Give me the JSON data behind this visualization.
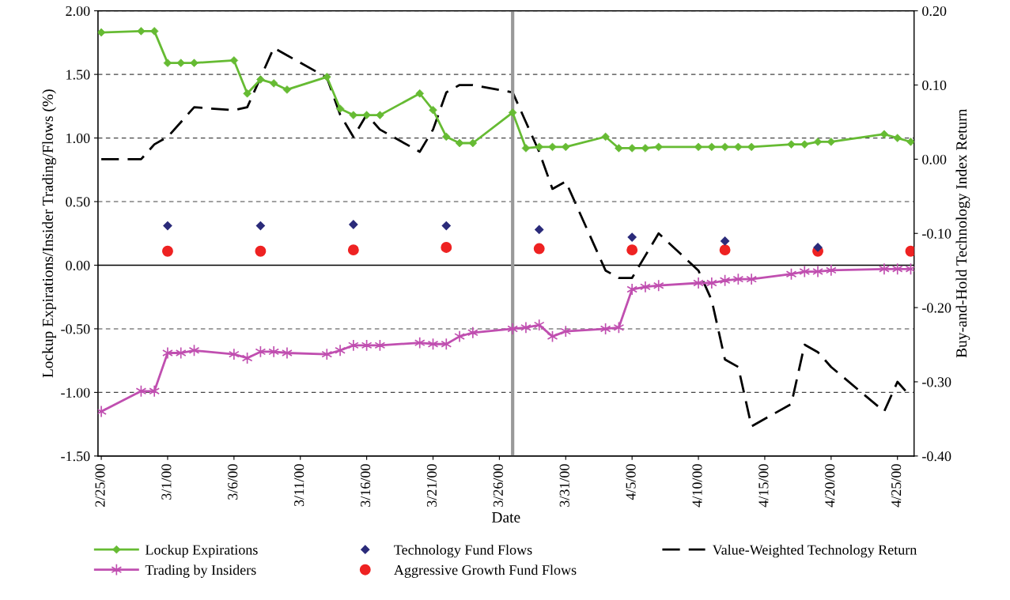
{
  "chart_data": {
    "type": "line",
    "xlabel": "Date",
    "ylabel": "Lockup Expirations/Insider Trading/Flows (%)",
    "y2label": "Buy-and-Hold Technology Index Return",
    "xlim": [
      "2000-02-24T18:00",
      "2000-04-26T06:00"
    ],
    "xticks": [
      {
        "value": "2000-02-25",
        "label": "2/25/00"
      },
      {
        "value": "2000-03-01",
        "label": "3/1/00"
      },
      {
        "value": "2000-03-06",
        "label": "3/6/00"
      },
      {
        "value": "2000-03-11",
        "label": "3/11/00"
      },
      {
        "value": "2000-03-16",
        "label": "3/16/00"
      },
      {
        "value": "2000-03-21",
        "label": "3/21/00"
      },
      {
        "value": "2000-03-26",
        "label": "3/26/00"
      },
      {
        "value": "2000-03-31",
        "label": "3/31/00"
      },
      {
        "value": "2000-04-05",
        "label": "4/5/00"
      },
      {
        "value": "2000-04-10",
        "label": "4/10/00"
      },
      {
        "value": "2000-04-15",
        "label": "4/15/00"
      },
      {
        "value": "2000-04-20",
        "label": "4/20/00"
      },
      {
        "value": "2000-04-25",
        "label": "4/25/00"
      }
    ],
    "ylim": [
      -1.5,
      2.0
    ],
    "yticks": [
      {
        "value": -1.5,
        "label": "-1.50"
      },
      {
        "value": -1.0,
        "label": "-1.00"
      },
      {
        "value": -0.5,
        "label": "-0.50"
      },
      {
        "value": 0,
        "label": "0.00"
      },
      {
        "value": 0.5,
        "label": "0.50"
      },
      {
        "value": 1.0,
        "label": "1.00"
      },
      {
        "value": 1.5,
        "label": "1.50"
      },
      {
        "value": 2.0,
        "label": "2.00"
      }
    ],
    "y2lim": [
      -0.4,
      0.2
    ],
    "y2ticks": [
      {
        "value": -0.4,
        "label": "-0.40"
      },
      {
        "value": -0.3,
        "label": "-0.30"
      },
      {
        "value": -0.2,
        "label": "-0.20"
      },
      {
        "value": -0.1,
        "label": "-0.10"
      },
      {
        "value": 0,
        "label": "0.00"
      },
      {
        "value": 0.1,
        "label": "0.10"
      },
      {
        "value": 0.2,
        "label": "0.20"
      }
    ],
    "grid": "y",
    "legend": "bottom",
    "ref_lines": [
      {
        "axis": "y",
        "value": 0,
        "color": "#000000",
        "line_style": "solid"
      },
      {
        "axis": "x",
        "value": "2000-03-27",
        "color": "#999999",
        "line_style": "solid"
      }
    ],
    "series": [
      {
        "name": "Lockup Expirations",
        "color": "#66bb33",
        "marker": "diamond",
        "line_style": "solid",
        "x": [
          "2000-02-25",
          "2000-02-28",
          "2000-02-29",
          "2000-03-01",
          "2000-03-02",
          "2000-03-03",
          "2000-03-06",
          "2000-03-07",
          "2000-03-08",
          "2000-03-09",
          "2000-03-10",
          "2000-03-13",
          "2000-03-14",
          "2000-03-15",
          "2000-03-16",
          "2000-03-17",
          "2000-03-20",
          "2000-03-21",
          "2000-03-22",
          "2000-03-23",
          "2000-03-24",
          "2000-03-27",
          "2000-03-28",
          "2000-03-29",
          "2000-03-30",
          "2000-03-31",
          "2000-04-03",
          "2000-04-04",
          "2000-04-05",
          "2000-04-06",
          "2000-04-07",
          "2000-04-10",
          "2000-04-11",
          "2000-04-12",
          "2000-04-13",
          "2000-04-14",
          "2000-04-17",
          "2000-04-18",
          "2000-04-19",
          "2000-04-20",
          "2000-04-24",
          "2000-04-25",
          "2000-04-26"
        ],
        "values": [
          1.83,
          1.84,
          1.84,
          1.59,
          1.59,
          1.59,
          1.61,
          1.35,
          1.46,
          1.43,
          1.38,
          1.48,
          1.23,
          1.18,
          1.18,
          1.18,
          1.35,
          1.22,
          1.01,
          0.96,
          0.96,
          1.2,
          0.92,
          0.93,
          0.93,
          0.93,
          1.01,
          0.92,
          0.92,
          0.92,
          0.93,
          0.93,
          0.93,
          0.93,
          0.93,
          0.93,
          0.95,
          0.95,
          0.97,
          0.97,
          1.03,
          1.0,
          0.97
        ]
      },
      {
        "name": "Trading by Insiders",
        "color": "#c04fb0",
        "marker": "cross",
        "line_style": "solid",
        "x": [
          "2000-02-25",
          "2000-02-28",
          "2000-02-29",
          "2000-03-01",
          "2000-03-02",
          "2000-03-03",
          "2000-03-06",
          "2000-03-07",
          "2000-03-08",
          "2000-03-09",
          "2000-03-10",
          "2000-03-13",
          "2000-03-14",
          "2000-03-15",
          "2000-03-16",
          "2000-03-17",
          "2000-03-20",
          "2000-03-21",
          "2000-03-22",
          "2000-03-23",
          "2000-03-24",
          "2000-03-27",
          "2000-03-28",
          "2000-03-29",
          "2000-03-30",
          "2000-03-31",
          "2000-04-03",
          "2000-04-04",
          "2000-04-05",
          "2000-04-06",
          "2000-04-07",
          "2000-04-10",
          "2000-04-11",
          "2000-04-12",
          "2000-04-13",
          "2000-04-14",
          "2000-04-17",
          "2000-04-18",
          "2000-04-19",
          "2000-04-20",
          "2000-04-24",
          "2000-04-25",
          "2000-04-26"
        ],
        "values": [
          -1.15,
          -0.99,
          -0.99,
          -0.69,
          -0.69,
          -0.67,
          -0.7,
          -0.73,
          -0.68,
          -0.68,
          -0.69,
          -0.7,
          -0.67,
          -0.63,
          -0.63,
          -0.63,
          -0.61,
          -0.62,
          -0.62,
          -0.56,
          -0.53,
          -0.5,
          -0.49,
          -0.47,
          -0.56,
          -0.52,
          -0.5,
          -0.49,
          -0.19,
          -0.17,
          -0.16,
          -0.14,
          -0.14,
          -0.12,
          -0.11,
          -0.11,
          -0.07,
          -0.05,
          -0.05,
          -0.04,
          -0.03,
          -0.03,
          -0.03
        ]
      },
      {
        "name": "Technology Fund Flows",
        "type": "scatter",
        "color": "#2b2b7a",
        "marker": "diamond",
        "x": [
          "2000-03-01",
          "2000-03-08",
          "2000-03-15",
          "2000-03-22",
          "2000-03-29",
          "2000-04-05",
          "2000-04-12",
          "2000-04-19"
        ],
        "values": [
          0.31,
          0.31,
          0.32,
          0.31,
          0.28,
          0.22,
          0.19,
          0.14
        ]
      },
      {
        "name": "Aggressive Growth Fund Flows",
        "type": "scatter",
        "color": "#ee2222",
        "marker": "circle",
        "x": [
          "2000-03-01",
          "2000-03-08",
          "2000-03-15",
          "2000-03-22",
          "2000-03-29",
          "2000-04-05",
          "2000-04-12",
          "2000-04-19",
          "2000-04-26"
        ],
        "values": [
          0.11,
          0.11,
          0.12,
          0.14,
          0.13,
          0.12,
          0.12,
          0.11,
          0.11
        ]
      },
      {
        "name": "Value-Weighted Technology Return",
        "axis": "y2",
        "color": "#000000",
        "marker": "none",
        "line_style": "dashed",
        "x": [
          "2000-02-25",
          "2000-02-28",
          "2000-02-29",
          "2000-03-01",
          "2000-03-02",
          "2000-03-03",
          "2000-03-06",
          "2000-03-07",
          "2000-03-08",
          "2000-03-09",
          "2000-03-10",
          "2000-03-13",
          "2000-03-14",
          "2000-03-15",
          "2000-03-16",
          "2000-03-17",
          "2000-03-20",
          "2000-03-21",
          "2000-03-22",
          "2000-03-23",
          "2000-03-24",
          "2000-03-27",
          "2000-03-28",
          "2000-03-29",
          "2000-03-30",
          "2000-03-31",
          "2000-04-03",
          "2000-04-04",
          "2000-04-05",
          "2000-04-06",
          "2000-04-07",
          "2000-04-10",
          "2000-04-11",
          "2000-04-12",
          "2000-04-13",
          "2000-04-14",
          "2000-04-17",
          "2000-04-18",
          "2000-04-19",
          "2000-04-20",
          "2000-04-24",
          "2000-04-25",
          "2000-04-26"
        ],
        "values": [
          0.0,
          0.0,
          0.02,
          0.03,
          0.05,
          0.07,
          0.066,
          0.07,
          0.11,
          0.15,
          0.14,
          0.11,
          0.06,
          0.03,
          0.06,
          0.04,
          0.01,
          0.04,
          0.09,
          0.1,
          0.1,
          0.09,
          0.05,
          0.01,
          -0.04,
          -0.03,
          -0.15,
          -0.16,
          -0.16,
          -0.13,
          -0.1,
          -0.15,
          -0.19,
          -0.27,
          -0.28,
          -0.36,
          -0.33,
          -0.25,
          -0.26,
          -0.28,
          -0.34,
          -0.3,
          -0.32
        ]
      }
    ]
  }
}
